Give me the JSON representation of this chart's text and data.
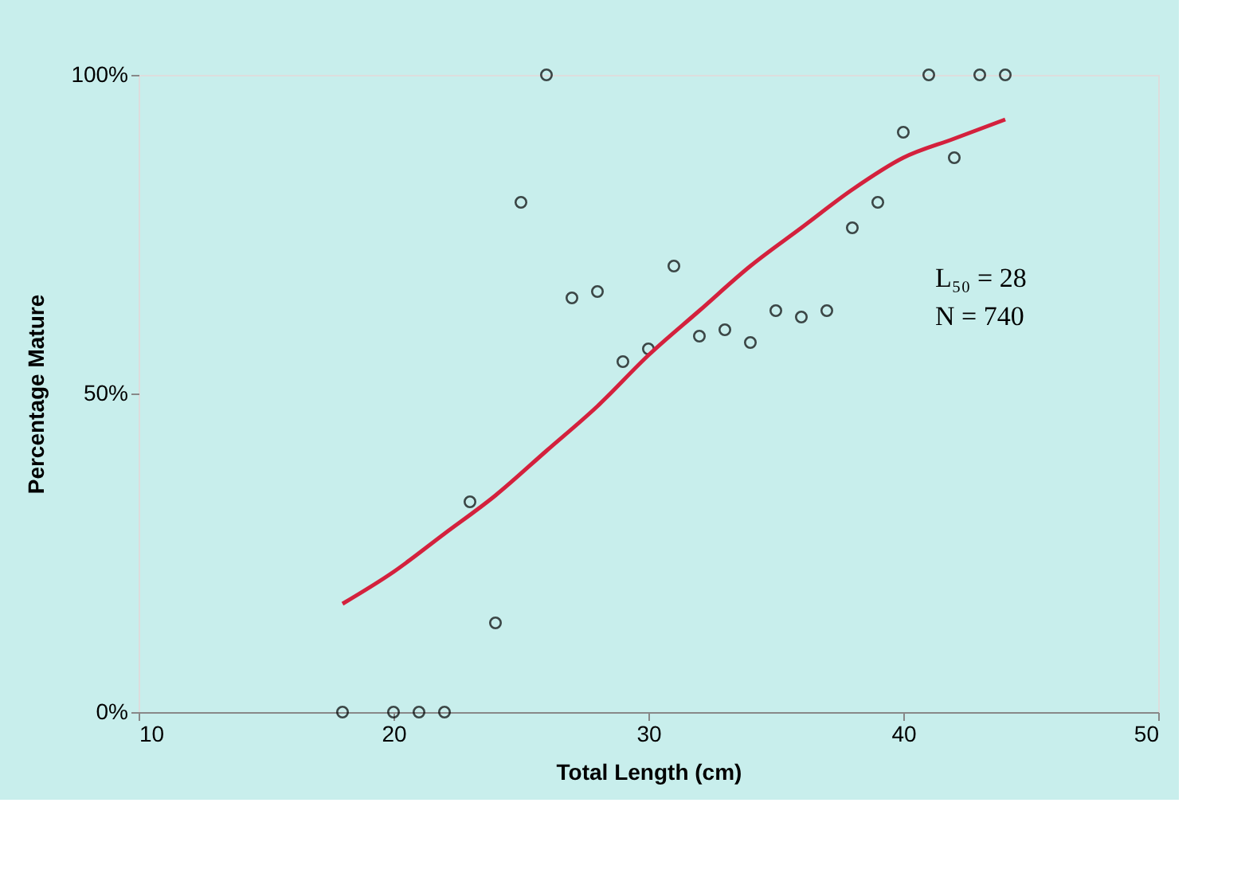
{
  "chart_data": {
    "type": "scatter",
    "xlabel": "Total Length (cm)",
    "ylabel": "Percentage Mature",
    "xlim": [
      10,
      50
    ],
    "ylim": [
      0,
      100
    ],
    "xticks": [
      10,
      20,
      30,
      40,
      50
    ],
    "yticks": [
      {
        "value": 0,
        "label": "0%"
      },
      {
        "value": 50,
        "label": "50%"
      },
      {
        "value": 100,
        "label": "100%"
      }
    ],
    "grid": false,
    "marker": "circle",
    "series": [
      {
        "color": "#000000",
        "x": [
          18,
          20,
          21,
          22,
          23,
          24,
          25,
          26,
          27,
          28,
          29,
          30,
          31,
          32,
          33,
          34,
          35,
          36,
          37,
          38,
          39,
          40,
          41,
          42,
          43,
          44
        ],
        "values": [
          0,
          0,
          0,
          0,
          33,
          14,
          80,
          100,
          65,
          66,
          55,
          57,
          70,
          59,
          60,
          58,
          63,
          62,
          63,
          76,
          80,
          91,
          100,
          87,
          100,
          100
        ]
      },
      {
        "type": "line",
        "color": "#d4213d",
        "marker": "none",
        "line_style": "solid",
        "x": [
          18,
          20,
          22,
          24,
          26,
          28,
          30,
          32,
          34,
          36,
          38,
          40,
          42,
          44
        ],
        "values": [
          17,
          22,
          28,
          34,
          41,
          48,
          56,
          63,
          70,
          76,
          82,
          87,
          90,
          93
        ]
      }
    ],
    "annotations": [
      "L₅₀ = 28",
      "N = 740"
    ]
  }
}
